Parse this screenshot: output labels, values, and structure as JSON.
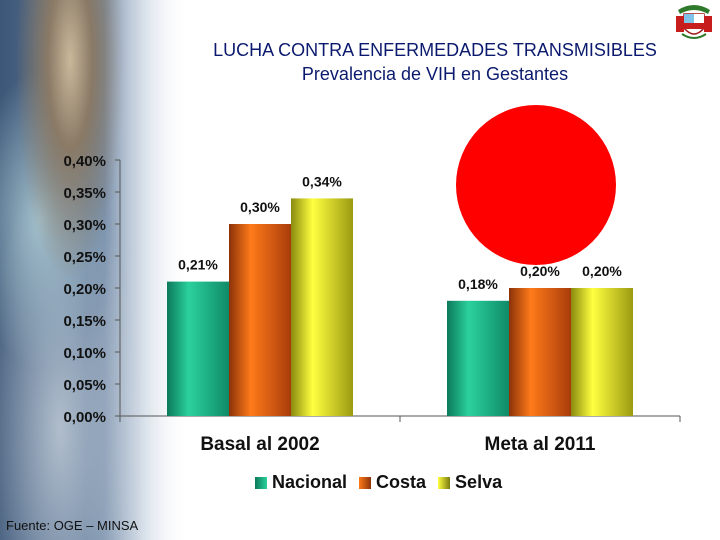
{
  "title": "LUCHA CONTRA ENFERMEDADES TRANSMISIBLES",
  "subtitle": "Prevalencia de VIH en Gestantes",
  "source": "Fuente: OGE – MINSA",
  "colors": {
    "nacional": "#12a37d",
    "costa": "#e35a0f",
    "selva": "#dede12",
    "highlight": "#ff0000",
    "title": "#0b1a6e"
  },
  "chart_data": {
    "type": "bar",
    "title": "Prevalencia de VIH en Gestantes",
    "categories": [
      "Basal al 2002",
      "Meta al 2011"
    ],
    "series": [
      {
        "name": "Nacional",
        "values": [
          0.21,
          0.18
        ],
        "labels": [
          "0,21%",
          "0,18%"
        ]
      },
      {
        "name": "Costa",
        "values": [
          0.3,
          0.2
        ],
        "labels": [
          "0,30%",
          "0,20%"
        ]
      },
      {
        "name": "Selva",
        "values": [
          0.34,
          0.2
        ],
        "labels": [
          "0,34%",
          "0,20%"
        ]
      }
    ],
    "ylim": [
      0,
      0.4
    ],
    "yticks": [
      0,
      0.05,
      0.1,
      0.15,
      0.2,
      0.25,
      0.3,
      0.35,
      0.4
    ],
    "ytick_labels": [
      "0,00%",
      "0,05%",
      "0,10%",
      "0,15%",
      "0,20%",
      "0,25%",
      "0,30%",
      "0,35%",
      "0,40%"
    ],
    "xlabel": "",
    "ylabel": "",
    "legend": "bottom",
    "grid": false
  }
}
